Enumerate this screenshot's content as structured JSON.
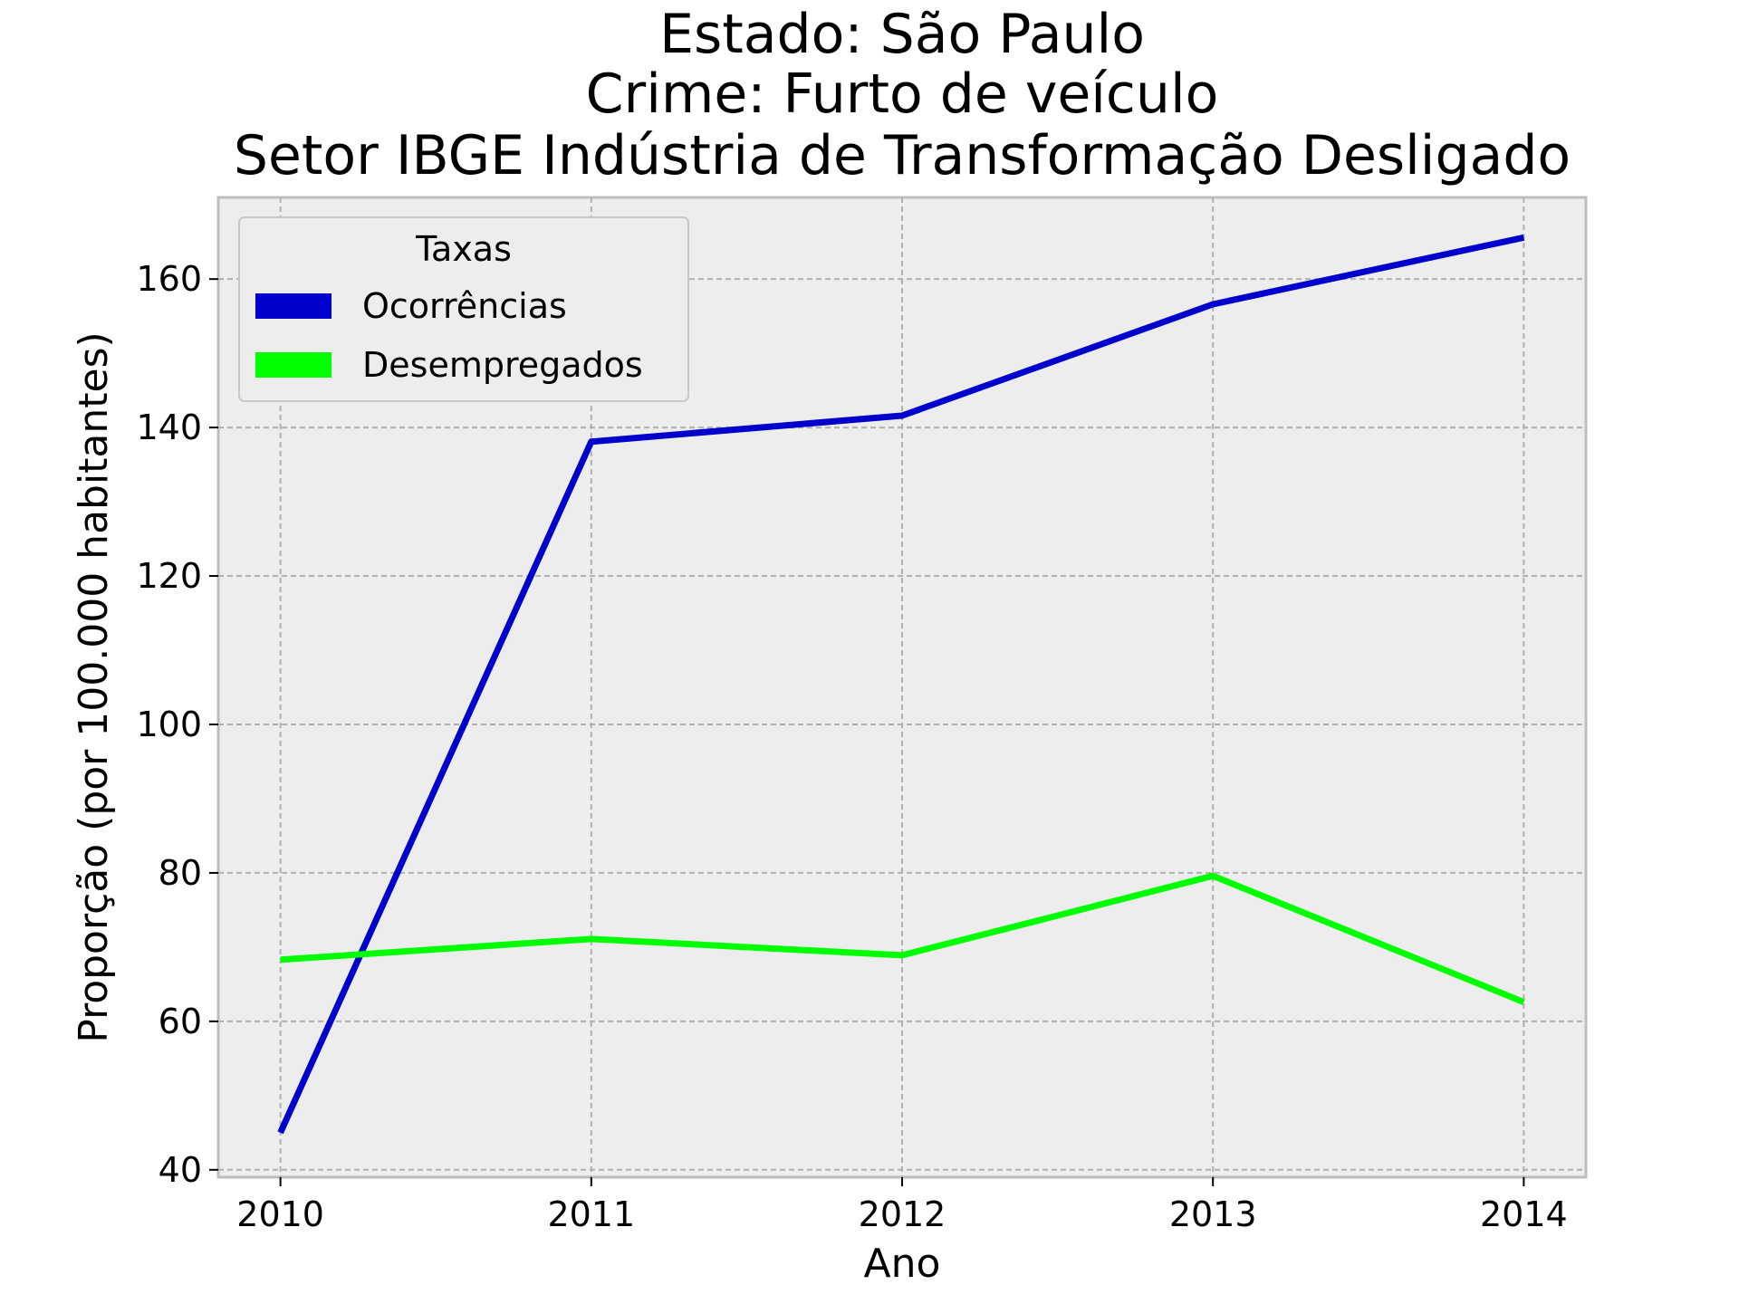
{
  "chart_data": {
    "type": "line",
    "title_lines": [
      "Estado: São Paulo",
      "Crime: Furto de veículo",
      "Setor IBGE  Indústria de Transformação   Desligado"
    ],
    "xlabel": "Ano",
    "ylabel": "Proporção (por 100.000 habitantes)",
    "x": [
      "2010",
      "2011",
      "2012",
      "2013",
      "2014"
    ],
    "yticks": [
      40,
      60,
      80,
      100,
      120,
      140,
      160
    ],
    "ylim": [
      39,
      171
    ],
    "xlim": [
      -0.2,
      4.2
    ],
    "grid": true,
    "legend": {
      "title": "Taxas",
      "placement": "top-left"
    },
    "series": [
      {
        "name": "Ocorrências",
        "color": "#0000cc",
        "values": [
          45.0,
          138.1,
          141.6,
          156.6,
          165.6
        ]
      },
      {
        "name": "Desempregados",
        "color": "#00ff00",
        "values": [
          68.3,
          71.1,
          68.9,
          79.6,
          62.6
        ]
      }
    ]
  }
}
